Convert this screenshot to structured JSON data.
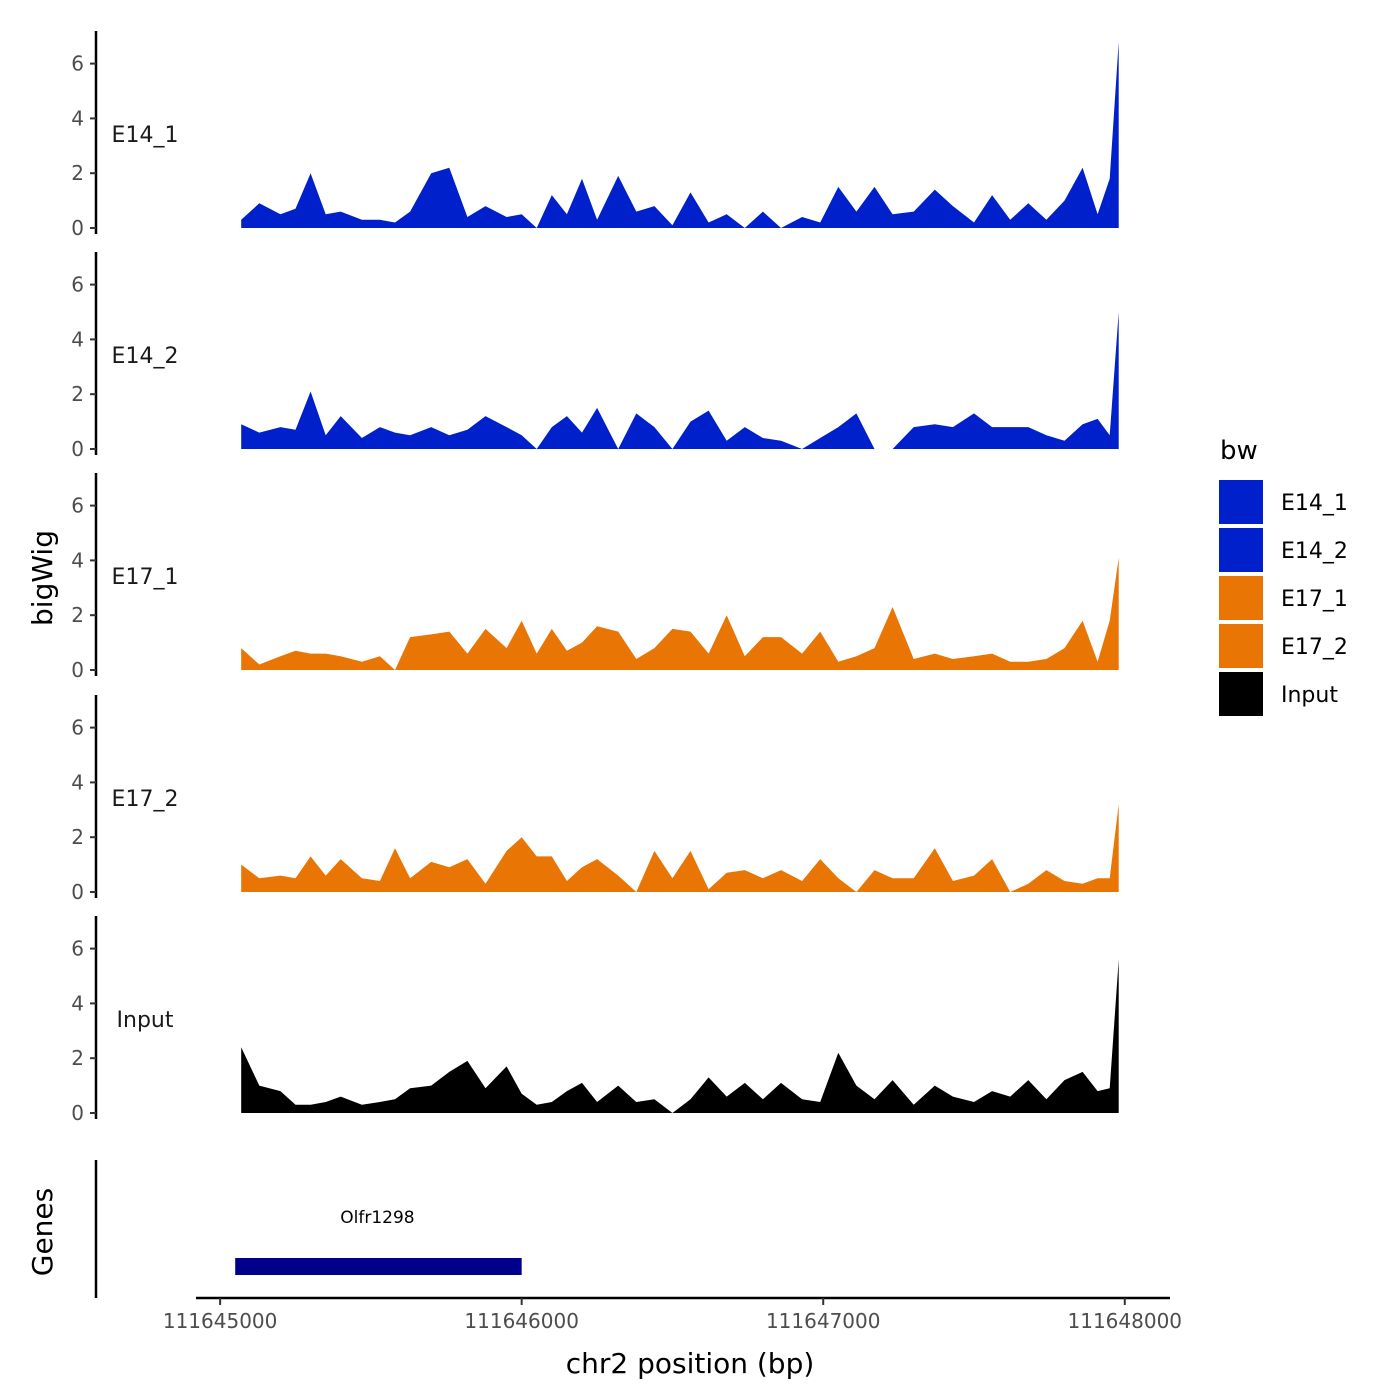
{
  "chart_data": {
    "type": "area",
    "title": "",
    "xlabel": "chr2 position (bp)",
    "ylabel": "bigWig",
    "genes_label": "Genes",
    "x_range": [
      111644920,
      111648150
    ],
    "x_ticks": [
      111645000,
      111646000,
      111647000,
      111648000
    ],
    "x_tick_labels": [
      "111645000",
      "111646000",
      "111647000",
      "111648000"
    ],
    "y_range": [
      0,
      7.2
    ],
    "y_ticks": [
      0,
      2,
      4,
      6
    ],
    "y_tick_labels": [
      "0",
      "2",
      "4",
      "6"
    ],
    "legend": {
      "title": "bw",
      "position": "right",
      "entries": [
        {
          "name": "E14_1",
          "color": "#0020CC"
        },
        {
          "name": "E14_2",
          "color": "#0020CC"
        },
        {
          "name": "E17_1",
          "color": "#E87504"
        },
        {
          "name": "E17_2",
          "color": "#E87504"
        },
        {
          "name": "Input",
          "color": "#000000"
        }
      ]
    },
    "x_sample": [
      111645070,
      111645130,
      111645200,
      111645250,
      111645300,
      111645350,
      111645400,
      111645470,
      111645530,
      111645580,
      111645630,
      111645700,
      111645760,
      111645820,
      111645880,
      111645950,
      111646000,
      111646050,
      111646100,
      111646150,
      111646200,
      111646250,
      111646320,
      111646380,
      111646440,
      111646500,
      111646560,
      111646620,
      111646680,
      111646740,
      111646800,
      111646860,
      111646930,
      111646990,
      111647050,
      111647110,
      111647170,
      111647230,
      111647300,
      111647370,
      111647430,
      111647500,
      111647560,
      111647620,
      111647680,
      111647740,
      111647800,
      111647860,
      111647910,
      111647950,
      111647980
    ],
    "series": [
      {
        "name": "E14_1",
        "color": "#0020CC",
        "values": [
          0.3,
          0.9,
          0.5,
          0.7,
          2.0,
          0.5,
          0.6,
          0.3,
          0.3,
          0.2,
          0.6,
          2.0,
          2.2,
          0.4,
          0.8,
          0.4,
          0.5,
          0.0,
          1.2,
          0.5,
          1.8,
          0.3,
          1.9,
          0.6,
          0.8,
          0.1,
          1.3,
          0.2,
          0.5,
          0.0,
          0.6,
          0.0,
          0.4,
          0.2,
          1.5,
          0.6,
          1.5,
          0.5,
          0.6,
          1.4,
          0.8,
          0.2,
          1.2,
          0.3,
          0.9,
          0.3,
          1.0,
          2.2,
          0.5,
          1.8,
          6.8
        ]
      },
      {
        "name": "E14_2",
        "color": "#0020CC",
        "values": [
          0.9,
          0.6,
          0.8,
          0.7,
          2.1,
          0.5,
          1.2,
          0.4,
          0.8,
          0.6,
          0.5,
          0.8,
          0.5,
          0.7,
          1.2,
          0.8,
          0.5,
          0.0,
          0.8,
          1.2,
          0.6,
          1.5,
          0.0,
          1.3,
          0.8,
          0.0,
          1.0,
          1.4,
          0.3,
          0.8,
          0.4,
          0.3,
          0.0,
          0.4,
          0.8,
          1.3,
          0.0,
          0.0,
          0.8,
          0.9,
          0.8,
          1.3,
          0.8,
          0.8,
          0.8,
          0.5,
          0.3,
          0.9,
          1.1,
          0.5,
          5.0
        ]
      },
      {
        "name": "E17_1",
        "color": "#E87504",
        "values": [
          0.8,
          0.2,
          0.5,
          0.7,
          0.6,
          0.6,
          0.5,
          0.3,
          0.5,
          0.0,
          1.2,
          1.3,
          1.4,
          0.6,
          1.5,
          0.8,
          1.8,
          0.6,
          1.5,
          0.7,
          1.0,
          1.6,
          1.4,
          0.4,
          0.8,
          1.5,
          1.4,
          0.6,
          2.0,
          0.5,
          1.2,
          1.2,
          0.6,
          1.4,
          0.3,
          0.5,
          0.8,
          2.3,
          0.4,
          0.6,
          0.4,
          0.5,
          0.6,
          0.3,
          0.3,
          0.4,
          0.8,
          1.8,
          0.3,
          1.8,
          4.1
        ]
      },
      {
        "name": "E17_2",
        "color": "#E87504",
        "values": [
          1.0,
          0.5,
          0.6,
          0.5,
          1.3,
          0.6,
          1.2,
          0.5,
          0.4,
          1.6,
          0.5,
          1.1,
          0.9,
          1.2,
          0.3,
          1.5,
          2.0,
          1.3,
          1.3,
          0.4,
          0.9,
          1.2,
          0.6,
          0.0,
          1.5,
          0.5,
          1.5,
          0.1,
          0.7,
          0.8,
          0.5,
          0.8,
          0.4,
          1.2,
          0.5,
          0.0,
          0.8,
          0.5,
          0.5,
          1.6,
          0.4,
          0.6,
          1.2,
          0.0,
          0.3,
          0.8,
          0.4,
          0.3,
          0.5,
          0.5,
          3.2
        ]
      },
      {
        "name": "Input",
        "color": "#000000",
        "values": [
          2.4,
          1.0,
          0.8,
          0.3,
          0.3,
          0.4,
          0.6,
          0.3,
          0.4,
          0.5,
          0.9,
          1.0,
          1.5,
          1.9,
          0.9,
          1.7,
          0.7,
          0.3,
          0.4,
          0.8,
          1.1,
          0.4,
          1.0,
          0.4,
          0.5,
          0.0,
          0.5,
          1.3,
          0.6,
          1.1,
          0.5,
          1.1,
          0.5,
          0.4,
          2.2,
          1.0,
          0.5,
          1.2,
          0.3,
          1.0,
          0.6,
          0.4,
          0.8,
          0.6,
          1.2,
          0.5,
          1.2,
          1.5,
          0.8,
          0.9,
          5.6
        ]
      }
    ],
    "gene": {
      "name": "Olfr1298",
      "start": 111645050,
      "end": 111646000,
      "color": "#00008B"
    }
  }
}
